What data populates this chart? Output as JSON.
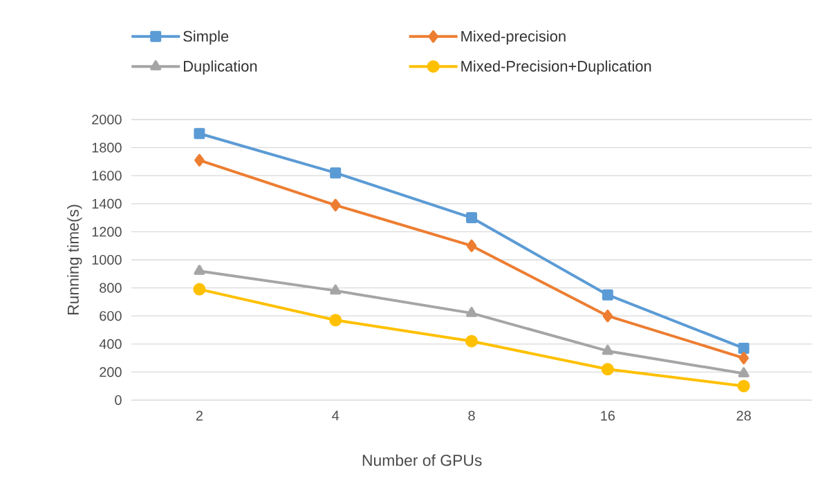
{
  "chart_data": {
    "type": "line",
    "xlabel": "Number of GPUs",
    "ylabel": "Running time(s)",
    "categories": [
      "2",
      "4",
      "8",
      "16",
      "28"
    ],
    "series": [
      {
        "name": "Simple",
        "color": "#5b9bd5",
        "marker": "square",
        "values": [
          1900,
          1620,
          1300,
          750,
          370
        ]
      },
      {
        "name": "Mixed-precision",
        "color": "#ed7d31",
        "marker": "diamond",
        "values": [
          1710,
          1390,
          1100,
          600,
          300
        ]
      },
      {
        "name": "Duplication",
        "color": "#a5a5a5",
        "marker": "triangle",
        "values": [
          920,
          780,
          620,
          350,
          190
        ]
      },
      {
        "name": "Mixed-Precision+Duplication",
        "color": "#ffc000",
        "marker": "circle",
        "values": [
          790,
          570,
          420,
          220,
          100
        ]
      }
    ],
    "ylim": [
      0,
      2000
    ],
    "yticks": [
      0,
      200,
      400,
      600,
      800,
      1000,
      1200,
      1400,
      1600,
      1800,
      2000
    ],
    "grid": "y",
    "legend": "top",
    "line_style": "solid"
  }
}
